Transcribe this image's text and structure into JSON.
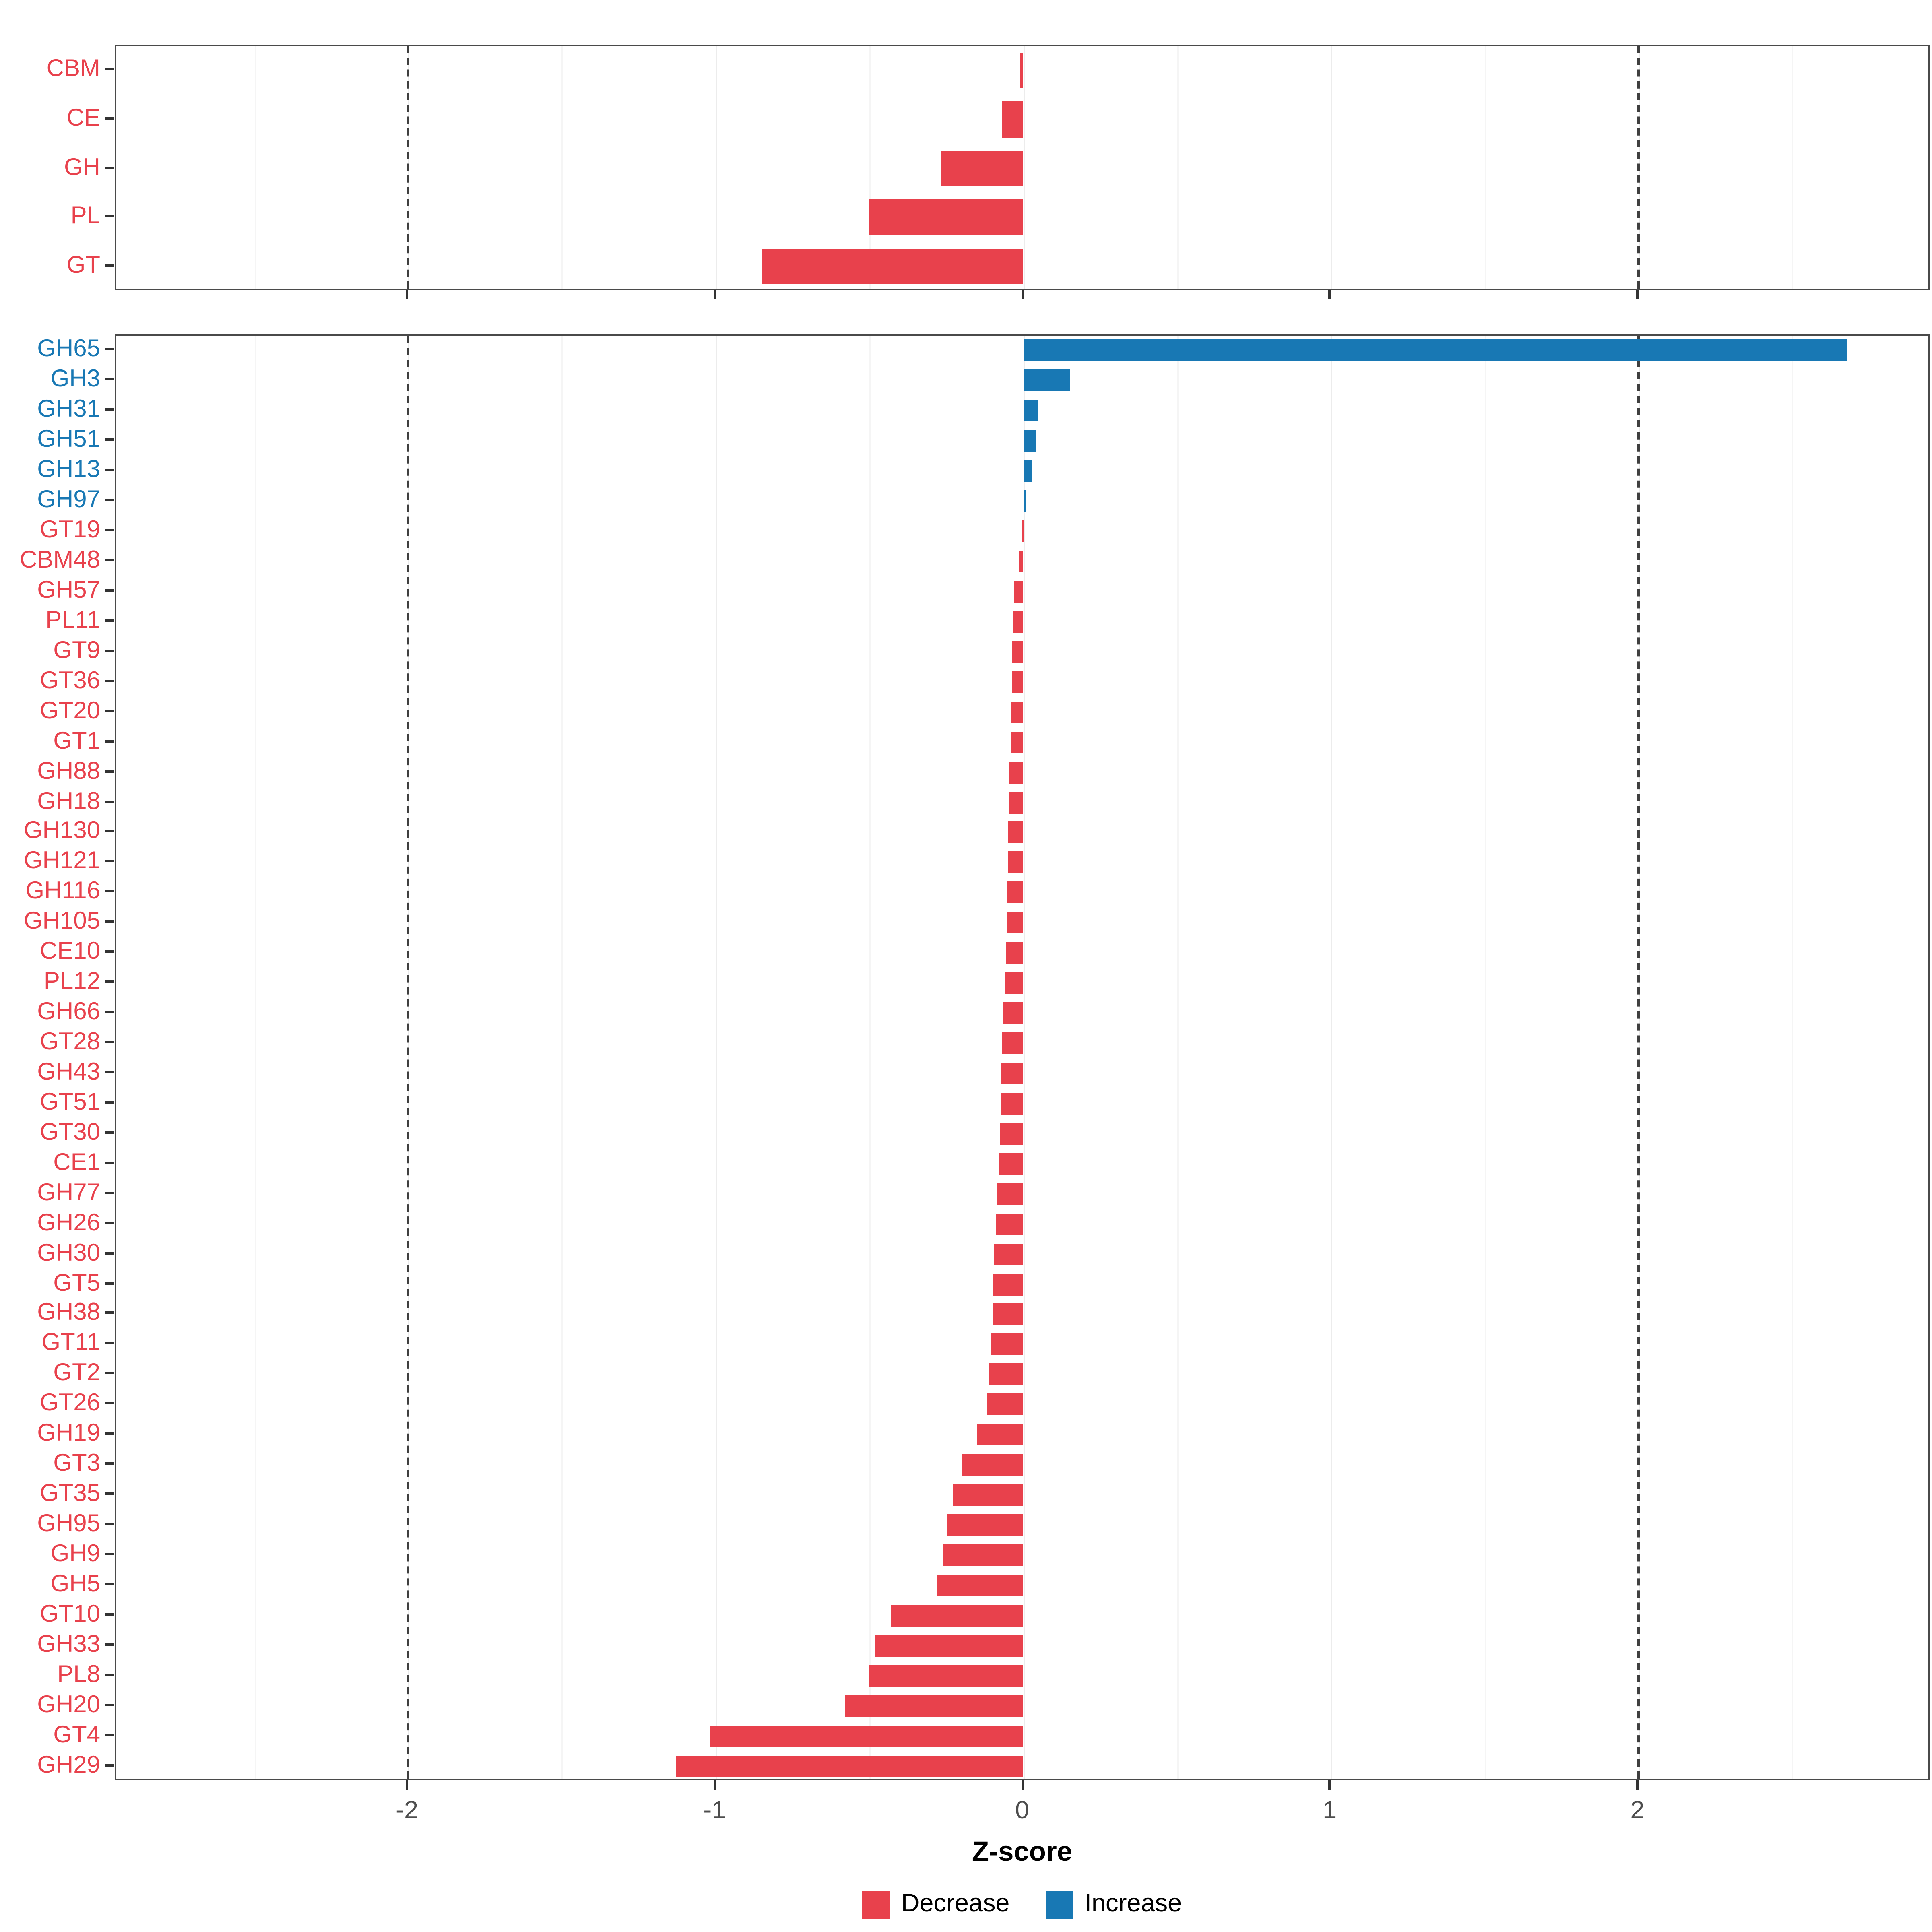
{
  "x_axis": {
    "label": "Z-score",
    "ticks": [
      -2,
      -1,
      0,
      1,
      2
    ],
    "range": [
      -2.95,
      2.95
    ],
    "dashed_lines_at": [
      -2,
      2
    ],
    "grid": true
  },
  "legend": {
    "position": "bottom-center",
    "items": [
      {
        "label": "Decrease",
        "color": "#E8414C"
      },
      {
        "label": "Increase",
        "color": "#1878B4"
      }
    ]
  },
  "colors": {
    "decrease": "#E8414C",
    "increase": "#1878B4",
    "grid_major": "#ececec",
    "panel_border": "#4a4a4a",
    "dashed_line": "#3f3f3f",
    "x_tick_text": "#4d4d4d"
  },
  "chart_data": [
    {
      "type": "bar",
      "orientation": "horizontal",
      "panel": "top",
      "categories": [
        "CBM",
        "CE",
        "GH",
        "PL",
        "GT"
      ],
      "values": [
        -0.01,
        -0.07,
        -0.27,
        -0.5,
        -0.85
      ],
      "directions": [
        "Decrease",
        "Decrease",
        "Decrease",
        "Decrease",
        "Decrease"
      ]
    },
    {
      "type": "bar",
      "orientation": "horizontal",
      "panel": "bottom",
      "categories": [
        "GH65",
        "GH3",
        "GH31",
        "GH51",
        "GH13",
        "GH97",
        "GT19",
        "CBM48",
        "GH57",
        "PL11",
        "GT9",
        "GT36",
        "GT20",
        "GT1",
        "GH88",
        "GH18",
        "GH130",
        "GH121",
        "GH116",
        "GH105",
        "CE10",
        "PL12",
        "GH66",
        "GT28",
        "GH43",
        "GT51",
        "GT30",
        "CE1",
        "GH77",
        "GH26",
        "GH30",
        "GT5",
        "GH38",
        "GT11",
        "GT2",
        "GT26",
        "GH19",
        "GT3",
        "GT35",
        "GH95",
        "GH9",
        "GH5",
        "GT10",
        "GH33",
        "PL8",
        "GH20",
        "GT4",
        "GH29"
      ],
      "values": [
        2.68,
        0.15,
        0.05,
        0.04,
        0.03,
        0.01,
        -0.005,
        -0.012,
        -0.028,
        -0.033,
        -0.036,
        -0.038,
        -0.04,
        -0.042,
        -0.044,
        -0.046,
        -0.048,
        -0.05,
        -0.052,
        -0.054,
        -0.057,
        -0.06,
        -0.065,
        -0.07,
        -0.072,
        -0.074,
        -0.077,
        -0.08,
        -0.085,
        -0.09,
        -0.095,
        -0.1,
        -0.1,
        -0.105,
        -0.11,
        -0.12,
        -0.15,
        -0.2,
        -0.23,
        -0.25,
        -0.26,
        -0.28,
        -0.43,
        -0.48,
        -0.5,
        -0.58,
        -1.02,
        -1.13
      ],
      "directions": [
        "Increase",
        "Increase",
        "Increase",
        "Increase",
        "Increase",
        "Increase",
        "Decrease",
        "Decrease",
        "Decrease",
        "Decrease",
        "Decrease",
        "Decrease",
        "Decrease",
        "Decrease",
        "Decrease",
        "Decrease",
        "Decrease",
        "Decrease",
        "Decrease",
        "Decrease",
        "Decrease",
        "Decrease",
        "Decrease",
        "Decrease",
        "Decrease",
        "Decrease",
        "Decrease",
        "Decrease",
        "Decrease",
        "Decrease",
        "Decrease",
        "Decrease",
        "Decrease",
        "Decrease",
        "Decrease",
        "Decrease",
        "Decrease",
        "Decrease",
        "Decrease",
        "Decrease",
        "Decrease",
        "Decrease",
        "Decrease",
        "Decrease",
        "Decrease",
        "Decrease",
        "Decrease",
        "Decrease"
      ]
    }
  ]
}
